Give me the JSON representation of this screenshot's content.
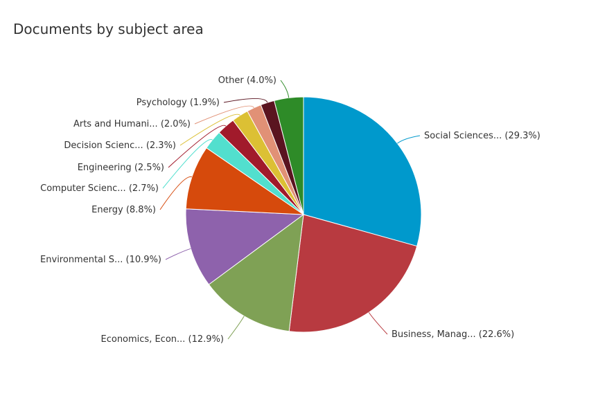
{
  "chart_data": {
    "type": "pie",
    "title": "Documents by subject area",
    "legend": "none",
    "slices": [
      {
        "label": "Social Sciences... (29.3%)",
        "value": 29.3,
        "color": "#0099cc"
      },
      {
        "label": "Business, Manag... (22.6%)",
        "value": 22.6,
        "color": "#b83a40"
      },
      {
        "label": "Economics, Econ... (12.9%)",
        "value": 12.9,
        "color": "#7fa155"
      },
      {
        "label": "Environmental S... (10.9%)",
        "value": 10.9,
        "color": "#8e62ac"
      },
      {
        "label": "Energy (8.8%)",
        "value": 8.8,
        "color": "#d64a0c"
      },
      {
        "label": "Computer Scienc... (2.7%)",
        "value": 2.7,
        "color": "#52dfce"
      },
      {
        "label": "Engineering (2.5%)",
        "value": 2.5,
        "color": "#a11a2b"
      },
      {
        "label": "Decision Scienc... (2.3%)",
        "value": 2.3,
        "color": "#dcc034"
      },
      {
        "label": "Arts and Humani... (2.0%)",
        "value": 2.0,
        "color": "#e19176"
      },
      {
        "label": "Psychology (1.9%)",
        "value": 1.9,
        "color": "#5a1420"
      },
      {
        "label": "Other (4.0%)",
        "value": 4.0,
        "color": "#2e8b28"
      }
    ]
  }
}
